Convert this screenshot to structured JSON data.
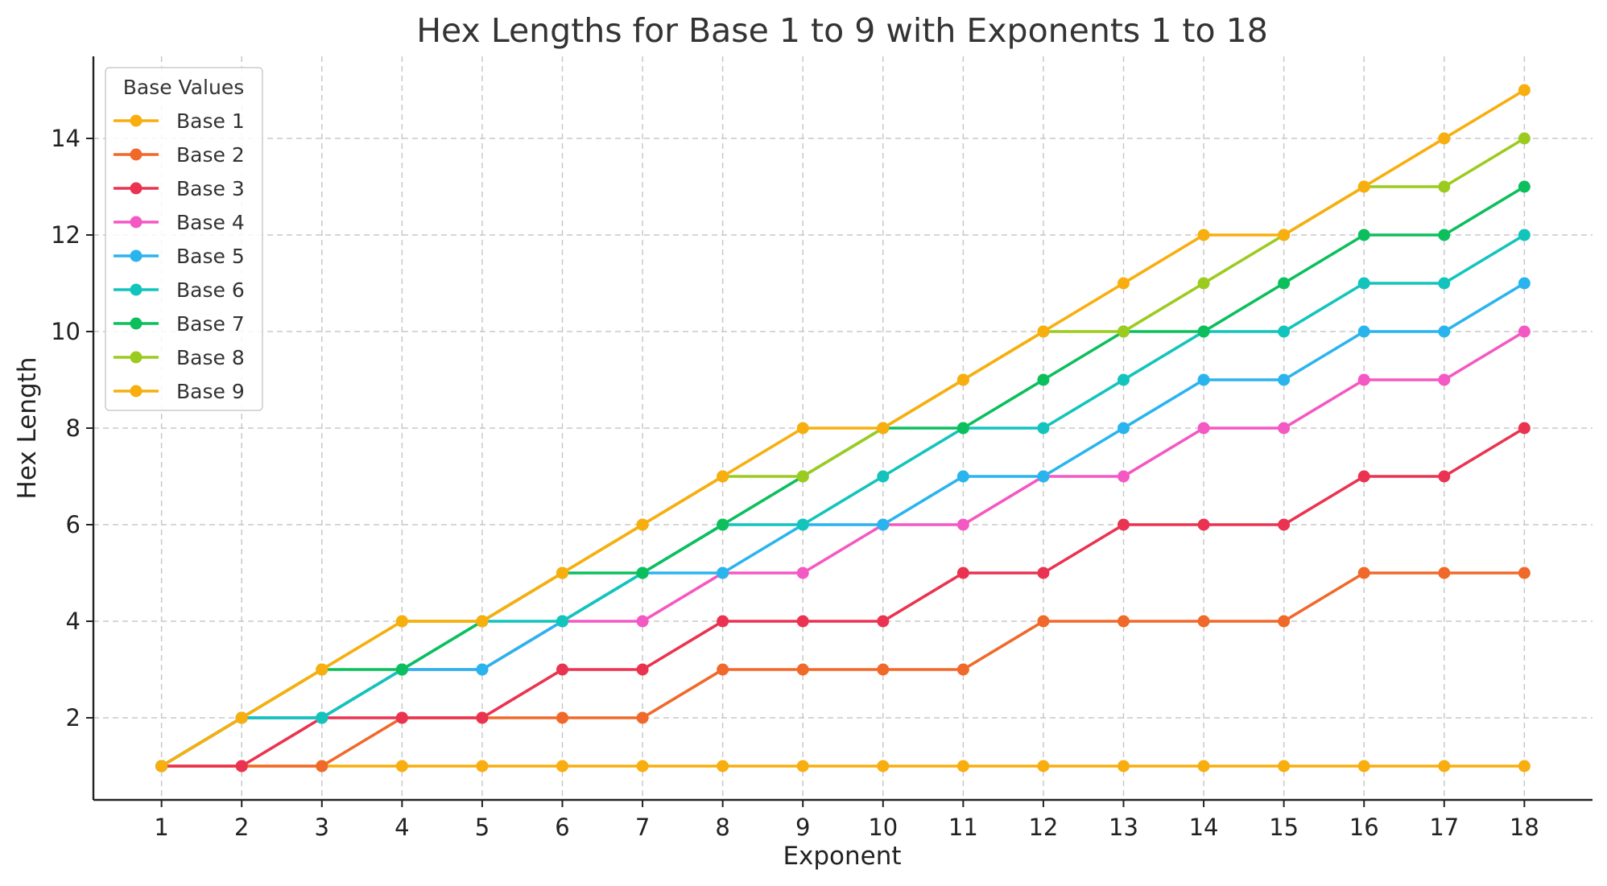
{
  "chart_data": {
    "type": "line",
    "title": "Hex Lengths for Base 1 to 9 with Exponents 1 to 18",
    "xlabel": "Exponent",
    "ylabel": "Hex Length",
    "x": [
      1,
      2,
      3,
      4,
      5,
      6,
      7,
      8,
      9,
      10,
      11,
      12,
      13,
      14,
      15,
      16,
      17,
      18
    ],
    "xticks": [
      1,
      2,
      3,
      4,
      5,
      6,
      7,
      8,
      9,
      10,
      11,
      12,
      13,
      14,
      15,
      16,
      17,
      18
    ],
    "yticks": [
      2,
      4,
      6,
      8,
      10,
      12,
      14
    ],
    "xlim": [
      0.15,
      18.85
    ],
    "ylim": [
      0.3,
      15.7
    ],
    "grid": true,
    "legend": {
      "title": "Base Values",
      "placement": "upper-left"
    },
    "series": [
      {
        "name": "Base 1",
        "color": "#f8ae0e",
        "values": [
          1,
          1,
          1,
          1,
          1,
          1,
          1,
          1,
          1,
          1,
          1,
          1,
          1,
          1,
          1,
          1,
          1,
          1
        ]
      },
      {
        "name": "Base 2",
        "color": "#f0692a",
        "values": [
          1,
          1,
          1,
          2,
          2,
          2,
          2,
          3,
          3,
          3,
          3,
          4,
          4,
          4,
          4,
          5,
          5,
          5
        ]
      },
      {
        "name": "Base 3",
        "color": "#ea3350",
        "values": [
          1,
          1,
          2,
          2,
          2,
          3,
          3,
          4,
          4,
          4,
          5,
          5,
          6,
          6,
          6,
          7,
          7,
          8
        ]
      },
      {
        "name": "Base 4",
        "color": "#f458c2",
        "values": [
          1,
          2,
          2,
          3,
          3,
          4,
          4,
          5,
          5,
          6,
          6,
          7,
          7,
          8,
          8,
          9,
          9,
          10
        ]
      },
      {
        "name": "Base 5",
        "color": "#2ab4ee",
        "values": [
          1,
          2,
          2,
          3,
          3,
          4,
          5,
          5,
          6,
          6,
          7,
          7,
          8,
          9,
          9,
          10,
          10,
          11
        ]
      },
      {
        "name": "Base 6",
        "color": "#12c4bc",
        "values": [
          1,
          2,
          2,
          3,
          4,
          4,
          5,
          6,
          6,
          7,
          8,
          8,
          9,
          10,
          10,
          11,
          11,
          12
        ]
      },
      {
        "name": "Base 7",
        "color": "#0bbf5c",
        "values": [
          1,
          2,
          3,
          3,
          4,
          5,
          5,
          6,
          7,
          8,
          8,
          9,
          10,
          10,
          11,
          12,
          12,
          13
        ]
      },
      {
        "name": "Base 8",
        "color": "#9ccb1f",
        "values": [
          1,
          2,
          3,
          4,
          4,
          5,
          6,
          7,
          7,
          8,
          9,
          10,
          10,
          11,
          12,
          13,
          13,
          14
        ]
      },
      {
        "name": "Base 9",
        "color": "#f8ae0e",
        "values": [
          1,
          2,
          3,
          4,
          4,
          5,
          6,
          7,
          8,
          8,
          9,
          10,
          11,
          12,
          12,
          13,
          14,
          15
        ]
      }
    ]
  }
}
